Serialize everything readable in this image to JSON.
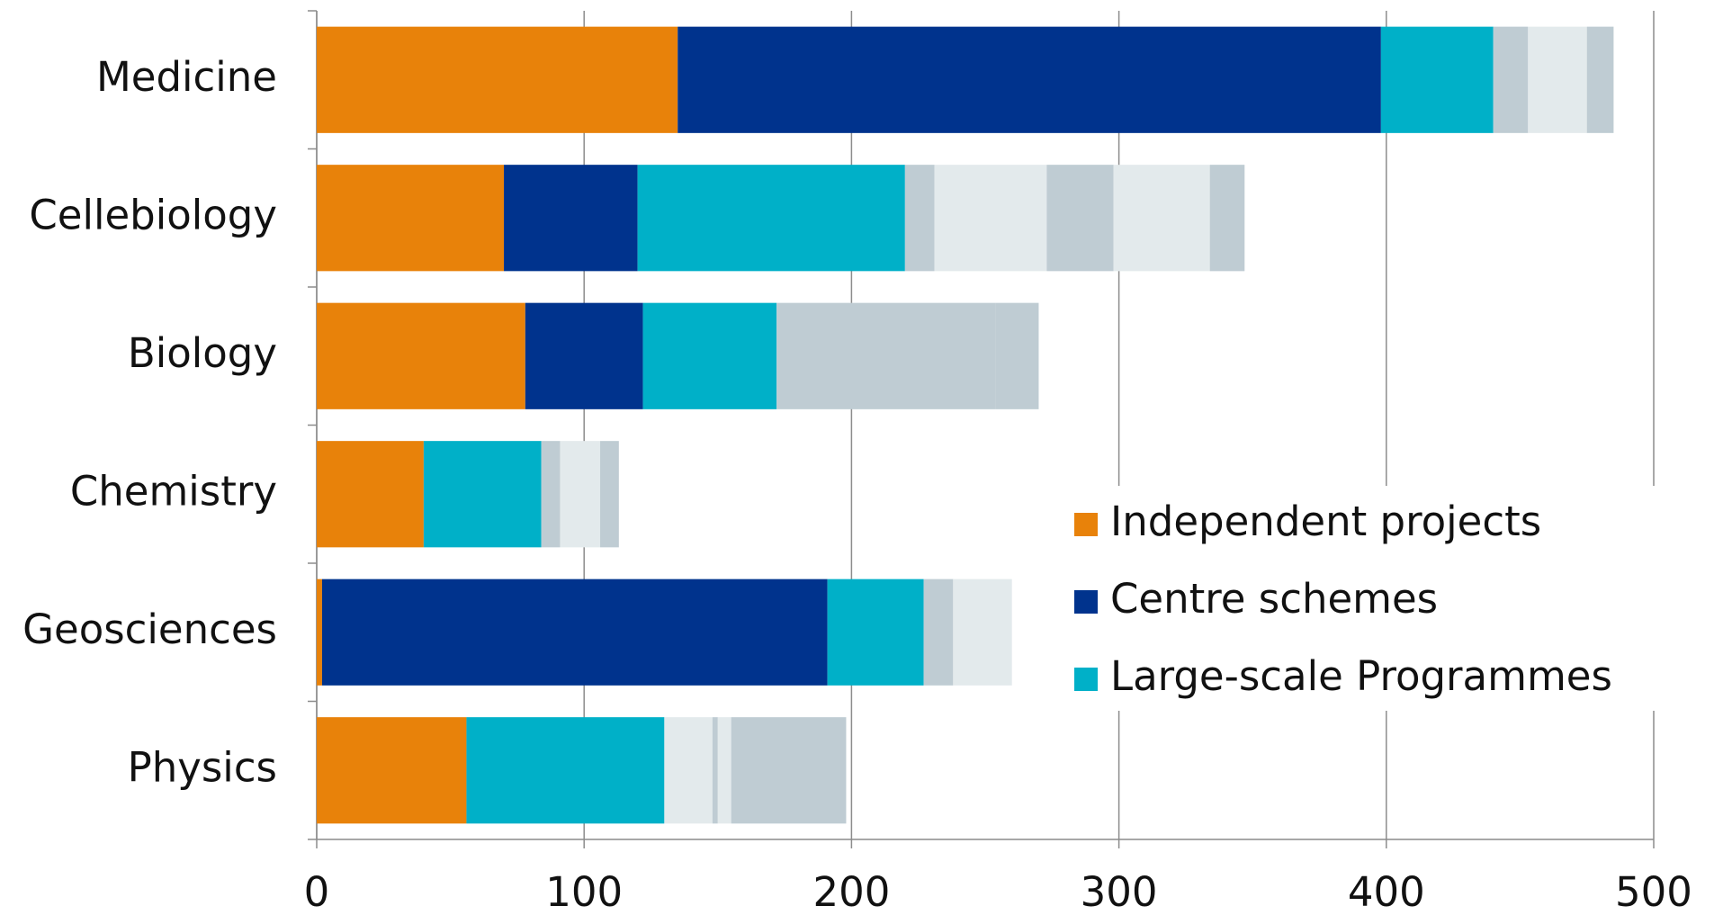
{
  "chart_data": {
    "type": "stacked-bar-horizontal",
    "categories": [
      "Medicine",
      "Cellebiology",
      "Biology",
      "Chemistry",
      "Geosciences",
      "Physics"
    ],
    "series": [
      {
        "name": "Independent projects",
        "color": "#e8820a",
        "values": [
          135,
          70,
          78,
          40,
          2,
          56
        ]
      },
      {
        "name": "Centre schemes",
        "color": "#00338d",
        "values": [
          263,
          50,
          44,
          0,
          189,
          0
        ]
      },
      {
        "name": "Large-scale Programmes",
        "color": "#00b0c8",
        "values": [
          42,
          100,
          50,
          44,
          36,
          74
        ]
      },
      {
        "name": null,
        "color": "#bfccd3",
        "values": [
          13,
          11,
          60,
          7,
          11,
          0
        ]
      },
      {
        "name": null,
        "color": "#e3eaec",
        "values": [
          22,
          42,
          0,
          15,
          22,
          18
        ]
      },
      {
        "name": null,
        "color": "#bfccd3",
        "values": [
          10,
          25,
          22,
          7,
          0,
          2
        ]
      },
      {
        "name": null,
        "color": "#e3eaec",
        "values": [
          0,
          36,
          0,
          0,
          0,
          5
        ]
      },
      {
        "name": null,
        "color": "#bfccd3",
        "values": [
          0,
          13,
          16,
          0,
          0,
          43
        ]
      }
    ],
    "xlim": [
      0,
      500
    ],
    "xticks": [
      0,
      100,
      200,
      300,
      400,
      500
    ],
    "grid": true,
    "legend": "lower right"
  }
}
